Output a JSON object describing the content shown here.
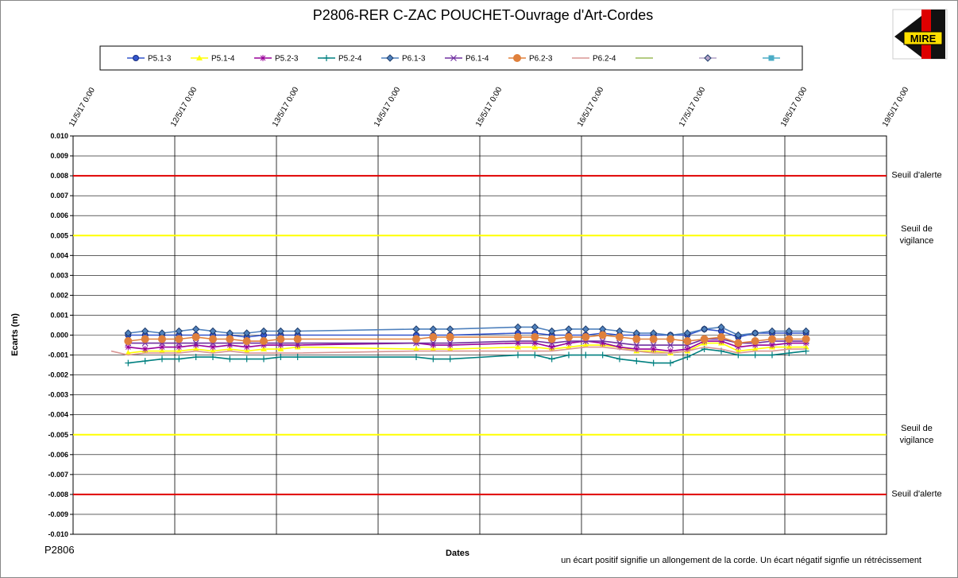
{
  "chart_data": {
    "type": "line",
    "title": "P2806-RER  C-ZAC  POUCHET-Ouvrage  d'Art-Cordes",
    "ylabel": "Ecarts (m)",
    "xlabel": "Dates",
    "footer_left": "P2806",
    "note": "un écart positif signifie un allongement  de la corde.  Un écart négatif signfie  un rétrécissement",
    "logo": "MIRE",
    "x": [
      "2017-05-11T09:00",
      "2017-05-11T13:00",
      "2017-05-11T17:00",
      "2017-05-11T21:00",
      "2017-05-12T01:00",
      "2017-05-12T05:00",
      "2017-05-12T09:00",
      "2017-05-12T13:00",
      "2017-05-12T17:00",
      "2017-05-12T21:00",
      "2017-05-13T01:00",
      "2017-05-13T05:00",
      "2017-05-14T09:00",
      "2017-05-14T13:00",
      "2017-05-14T17:00",
      "2017-05-15T09:00",
      "2017-05-15T13:00",
      "2017-05-15T17:00",
      "2017-05-15T21:00",
      "2017-05-16T01:00",
      "2017-05-16T05:00",
      "2017-05-16T09:00",
      "2017-05-16T13:00",
      "2017-05-16T17:00",
      "2017-05-16T21:00",
      "2017-05-17T01:00",
      "2017-05-17T05:00",
      "2017-05-17T09:00",
      "2017-05-17T13:00",
      "2017-05-17T17:00",
      "2017-05-17T21:00",
      "2017-05-18T01:00",
      "2017-05-18T05:00"
    ],
    "xlim": [
      "2017-05-11T00:00",
      "2017-05-19T00:00"
    ],
    "xticks": [
      {
        "value": "2017-05-11T00:00",
        "label": "11/5/17 0:00"
      },
      {
        "value": "2017-05-12T00:00",
        "label": "12/5/17 0:00"
      },
      {
        "value": "2017-05-13T00:00",
        "label": "13/5/17 0:00"
      },
      {
        "value": "2017-05-14T00:00",
        "label": "14/5/17 0:00"
      },
      {
        "value": "2017-05-15T00:00",
        "label": "15/5/17 0:00"
      },
      {
        "value": "2017-05-16T00:00",
        "label": "16/5/17 0:00"
      },
      {
        "value": "2017-05-17T00:00",
        "label": "17/5/17 0:00"
      },
      {
        "value": "2017-05-18T00:00",
        "label": "18/5/17 0:00"
      },
      {
        "value": "2017-05-19T00:00",
        "label": "19/5/17 0:00"
      }
    ],
    "ylim": [
      -0.01,
      0.01
    ],
    "yticks": [
      {
        "value": 0.01,
        "label": "0.010"
      },
      0.009,
      0.008,
      0.007,
      0.006,
      0.005,
      0.004,
      0.003,
      0.002,
      0.001,
      {
        "value": 0,
        "label": "0.000"
      },
      -0.001,
      -0.002,
      -0.003,
      -0.004,
      -0.005,
      -0.006,
      -0.007,
      -0.008,
      -0.009,
      {
        "value": -0.01,
        "label": "-0.010"
      }
    ],
    "grid": true,
    "thresholds": [
      {
        "value": 0.008,
        "label": "Seuil d'alerte",
        "color": "#e00000"
      },
      {
        "value": 0.005,
        "label": "Seuil de vigilance",
        "color": "#ffff00"
      },
      {
        "value": -0.005,
        "label": "Seuil de vigilance",
        "color": "#ffff00"
      },
      {
        "value": -0.008,
        "label": "Seuil d'alerte",
        "color": "#e00000"
      }
    ],
    "series": [
      {
        "name": "P5.1-3",
        "color": "#3355cc",
        "marker": "circle",
        "values": [
          null,
          0.0,
          0.0,
          0.0,
          0.0,
          0.0,
          0.0,
          0.0,
          -0.0001,
          0.0,
          0.0,
          0.0,
          0.0,
          0.0,
          0.0,
          0.0001,
          0.0001,
          0.0,
          0.0,
          0.0,
          0.0001,
          0.0,
          0.0,
          0.0,
          0.0,
          0.0,
          0.0003,
          0.0002,
          -0.0001,
          0.0001,
          0.0001,
          0.0001,
          0.0001
        ]
      },
      {
        "name": "P5.1-4",
        "color": "#ffff00",
        "marker": "triangle",
        "values": [
          null,
          -0.0009,
          -0.0008,
          -0.0008,
          -0.0008,
          -0.0007,
          -0.0008,
          -0.0007,
          -0.0008,
          -0.0007,
          -0.0007,
          -0.0006,
          -0.0007,
          -0.0007,
          -0.0007,
          -0.0006,
          -0.0006,
          -0.0007,
          -0.0006,
          -0.0005,
          -0.0005,
          -0.0006,
          -0.0008,
          -0.0008,
          -0.0009,
          -0.0008,
          -0.0004,
          -0.0004,
          -0.0008,
          -0.0007,
          -0.0006,
          -0.0006,
          -0.0006
        ]
      },
      {
        "name": "P5.2-3",
        "color": "#990099",
        "marker": "star",
        "values": [
          null,
          -0.0006,
          -0.0007,
          -0.0006,
          -0.0006,
          -0.0005,
          -0.0006,
          -0.0005,
          -0.0006,
          -0.0005,
          -0.0005,
          -0.0005,
          -0.0004,
          -0.0005,
          -0.0005,
          -0.0004,
          -0.0004,
          -0.0006,
          -0.0004,
          -0.0003,
          -0.0004,
          -0.0006,
          -0.0007,
          -0.0007,
          -0.0008,
          -0.0007,
          -0.0003,
          -0.0003,
          -0.0006,
          -0.0005,
          -0.0005,
          -0.0004,
          -0.0004
        ]
      },
      {
        "name": "P5.2-4",
        "color": "#008080",
        "marker": "plus",
        "values": [
          null,
          -0.0014,
          -0.0013,
          -0.0012,
          -0.0012,
          -0.0011,
          -0.0011,
          -0.0012,
          -0.0012,
          -0.0012,
          -0.0011,
          -0.0011,
          -0.0011,
          -0.0012,
          -0.0012,
          -0.001,
          -0.001,
          -0.0012,
          -0.001,
          -0.001,
          -0.001,
          -0.0012,
          -0.0013,
          -0.0014,
          -0.0014,
          -0.0011,
          -0.0007,
          -0.0008,
          -0.001,
          -0.001,
          -0.001,
          -0.0009,
          -0.0008
        ]
      },
      {
        "name": "P6.1-3",
        "color": "#4f81bd",
        "marker": "diamond",
        "values": [
          null,
          0.0001,
          0.0002,
          0.0001,
          0.0002,
          0.0003,
          0.0002,
          0.0001,
          0.0001,
          0.0002,
          0.0002,
          0.0002,
          0.0003,
          0.0003,
          0.0003,
          0.0004,
          0.0004,
          0.0002,
          0.0003,
          0.0003,
          0.0003,
          0.0002,
          0.0001,
          0.0001,
          0.0,
          0.0001,
          0.0003,
          0.0004,
          0.0,
          0.0001,
          0.0002,
          0.0002,
          0.0002
        ]
      },
      {
        "name": "P6.1-4",
        "color": "#7030a0",
        "marker": "x",
        "values": [
          null,
          -0.0004,
          -0.0004,
          -0.0004,
          -0.0004,
          -0.0004,
          -0.0004,
          -0.0004,
          -0.0004,
          -0.0004,
          -0.0004,
          -0.0004,
          -0.0004,
          -0.0004,
          -0.0004,
          -0.0003,
          -0.0003,
          -0.0004,
          -0.0003,
          -0.0003,
          -0.0003,
          -0.0004,
          -0.0005,
          -0.0005,
          -0.0005,
          -0.0005,
          -0.0002,
          -0.0002,
          -0.0004,
          -0.0004,
          -0.0003,
          -0.0003,
          -0.0003
        ]
      },
      {
        "name": "P6.2-3",
        "color": "#e0803c",
        "marker": "bigcircle",
        "values": [
          null,
          -0.0003,
          -0.0002,
          -0.0002,
          -0.0002,
          -0.0001,
          -0.0002,
          -0.0002,
          -0.0003,
          -0.0003,
          -0.0002,
          -0.0002,
          -0.0002,
          -0.0001,
          -0.0001,
          -0.0001,
          -0.0001,
          -0.0002,
          -0.0001,
          -0.0001,
          0.0,
          -0.0001,
          -0.0002,
          -0.0002,
          -0.0002,
          -0.0003,
          -0.0002,
          -0.0001,
          -0.0004,
          -0.0003,
          -0.0002,
          -0.0002,
          -0.0002
        ]
      },
      {
        "name": "P6.2-4",
        "color": "#d99694",
        "marker": "none",
        "values": [
          -0.0008,
          -0.001,
          -0.0009,
          -0.0009,
          -0.0009,
          -0.0008,
          -0.0009,
          -0.0008,
          -0.0009,
          -0.0009,
          -0.0009,
          -0.0009,
          -0.0008,
          -0.0008,
          -0.0008,
          -0.0008,
          -0.0008,
          -0.0008,
          -0.0007,
          -0.0006,
          -0.0006,
          -0.0007,
          -0.0008,
          -0.0009,
          -0.0009,
          -0.0008,
          -0.0006,
          -0.0007,
          -0.0009,
          -0.0008,
          -0.0008,
          -0.0007,
          -0.0007
        ]
      },
      {
        "color": "#9bbb59",
        "marker": "none",
        "values": [
          null,
          null,
          null,
          null,
          null,
          null,
          null,
          null,
          null,
          null,
          null,
          null,
          null,
          null,
          null,
          null,
          null,
          null,
          null,
          null,
          null,
          null,
          null,
          null,
          null,
          null,
          null,
          null,
          null,
          null,
          null,
          null,
          null
        ]
      },
      {
        "color": "#b3a2c7",
        "marker": "diamond",
        "values": [
          null,
          null,
          null,
          null,
          null,
          null,
          null,
          null,
          null,
          null,
          null,
          null,
          null,
          null,
          null,
          null,
          null,
          null,
          null,
          null,
          null,
          null,
          null,
          null,
          null,
          null,
          null,
          null,
          null,
          null,
          null,
          null,
          null
        ]
      },
      {
        "color": "#4bacc6",
        "marker": "square",
        "values": [
          null,
          null,
          null,
          null,
          null,
          null,
          null,
          null,
          null,
          null,
          null,
          null,
          null,
          null,
          null,
          null,
          null,
          null,
          null,
          null,
          null,
          null,
          null,
          null,
          null,
          null,
          null,
          null,
          null,
          null,
          null,
          null,
          null
        ]
      }
    ]
  }
}
